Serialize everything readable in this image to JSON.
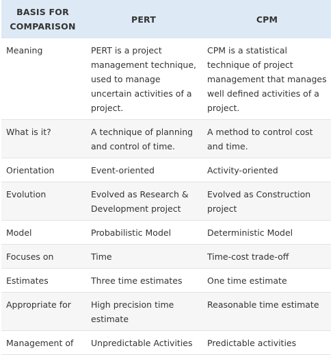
{
  "header": {
    "col1": "BASIS FOR COMPARISON",
    "col2": "PERT",
    "col3": "CPM"
  },
  "rows": [
    {
      "basis": "Meaning",
      "pert": "PERT is a project management technique, used to manage uncertain activities of a project.",
      "cpm": "CPM is a statistical technique of project management that manages well defined activities of a project."
    },
    {
      "basis": "What is it?",
      "pert": "A technique of planning and control of time.",
      "cpm": "A method to control cost and time."
    },
    {
      "basis": "Orientation",
      "pert": "Event-oriented",
      "cpm": "Activity-oriented"
    },
    {
      "basis": "Evolution",
      "pert": "Evolved as Research & Development project",
      "cpm": "Evolved as Construction project"
    },
    {
      "basis": "Model",
      "pert": "Probabilistic Model",
      "cpm": "Deterministic Model"
    },
    {
      "basis": "Focuses on",
      "pert": "Time",
      "cpm": "Time-cost trade-off"
    },
    {
      "basis": "Estimates",
      "pert": "Three time estimates",
      "cpm": "One time estimate"
    },
    {
      "basis": "Appropriate for",
      "pert": "High precision time estimate",
      "cpm": "Reasonable time estimate"
    },
    {
      "basis": "Management of",
      "pert": "Unpredictable Activities",
      "cpm": "Predictable activities"
    }
  ],
  "colors": {
    "header_bg": "#dde9f4",
    "alt_row_bg": "#f6f6f6",
    "text": "#333333"
  }
}
